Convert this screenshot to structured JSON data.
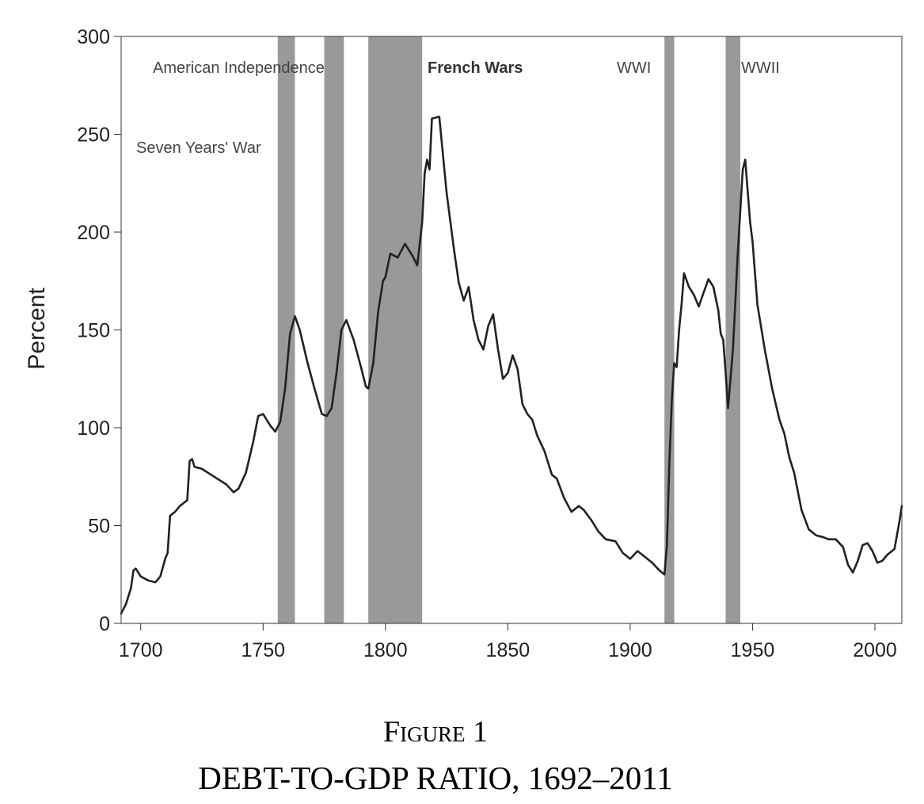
{
  "figure": {
    "label": "Figure 1",
    "title": "DEBT-TO-GDP RATIO, 1692–2011"
  },
  "colors": {
    "line": "#222222",
    "war_band": "#999999",
    "axis": "#333333"
  },
  "chart_data": {
    "type": "line",
    "ylabel": "Percent",
    "xlabel": "",
    "xlim": [
      1692,
      2011
    ],
    "ylim": [
      0,
      300
    ],
    "x_ticks": [
      1700,
      1750,
      1800,
      1850,
      1900,
      1950,
      2000
    ],
    "y_ticks": [
      0,
      50,
      100,
      150,
      200,
      250,
      300
    ],
    "grid": false,
    "wars": [
      {
        "label": "Seven Years' War",
        "start": 1756,
        "end": 1763,
        "bold": false
      },
      {
        "label": "American Independence",
        "start": 1775,
        "end": 1783,
        "bold": false
      },
      {
        "label": "French Wars",
        "start": 1793,
        "end": 1815,
        "bold": true
      },
      {
        "label": "WWI",
        "start": 1914,
        "end": 1918,
        "bold": false
      },
      {
        "label": "WWII",
        "start": 1939,
        "end": 1945,
        "bold": false
      }
    ],
    "series": [
      {
        "values": [
          [
            1692,
            5
          ],
          [
            1694,
            10
          ],
          [
            1696,
            18
          ],
          [
            1697,
            27
          ],
          [
            1698,
            28
          ],
          [
            1700,
            24
          ],
          [
            1703,
            22
          ],
          [
            1706,
            21
          ],
          [
            1708,
            24
          ],
          [
            1710,
            33
          ],
          [
            1711,
            36
          ],
          [
            1712,
            55
          ],
          [
            1714,
            57
          ],
          [
            1716,
            60
          ],
          [
            1719,
            63
          ],
          [
            1720,
            83
          ],
          [
            1721,
            84
          ],
          [
            1722,
            80
          ],
          [
            1725,
            79
          ],
          [
            1730,
            75
          ],
          [
            1735,
            71
          ],
          [
            1738,
            67
          ],
          [
            1740,
            69
          ],
          [
            1743,
            77
          ],
          [
            1746,
            93
          ],
          [
            1748,
            106
          ],
          [
            1750,
            107
          ],
          [
            1753,
            101
          ],
          [
            1755,
            98
          ],
          [
            1757,
            103
          ],
          [
            1759,
            120
          ],
          [
            1761,
            148
          ],
          [
            1763,
            157
          ],
          [
            1765,
            150
          ],
          [
            1768,
            134
          ],
          [
            1771,
            120
          ],
          [
            1774,
            107
          ],
          [
            1776,
            106
          ],
          [
            1778,
            110
          ],
          [
            1780,
            128
          ],
          [
            1782,
            150
          ],
          [
            1784,
            155
          ],
          [
            1787,
            145
          ],
          [
            1790,
            131
          ],
          [
            1792,
            121
          ],
          [
            1793,
            120
          ],
          [
            1795,
            133
          ],
          [
            1797,
            159
          ],
          [
            1799,
            175
          ],
          [
            1800,
            177
          ],
          [
            1802,
            189
          ],
          [
            1805,
            187
          ],
          [
            1808,
            194
          ],
          [
            1811,
            188
          ],
          [
            1813,
            183
          ],
          [
            1815,
            205
          ],
          [
            1816,
            230
          ],
          [
            1817,
            237
          ],
          [
            1818,
            232
          ],
          [
            1819,
            258
          ],
          [
            1822,
            259
          ],
          [
            1825,
            220
          ],
          [
            1828,
            191
          ],
          [
            1830,
            174
          ],
          [
            1832,
            165
          ],
          [
            1834,
            172
          ],
          [
            1836,
            155
          ],
          [
            1838,
            145
          ],
          [
            1840,
            140
          ],
          [
            1842,
            152
          ],
          [
            1844,
            158
          ],
          [
            1846,
            140
          ],
          [
            1848,
            125
          ],
          [
            1850,
            128
          ],
          [
            1852,
            137
          ],
          [
            1854,
            130
          ],
          [
            1856,
            112
          ],
          [
            1858,
            107
          ],
          [
            1860,
            104
          ],
          [
            1862,
            96
          ],
          [
            1865,
            88
          ],
          [
            1868,
            76
          ],
          [
            1870,
            74
          ],
          [
            1873,
            64
          ],
          [
            1876,
            57
          ],
          [
            1879,
            60
          ],
          [
            1881,
            58
          ],
          [
            1884,
            53
          ],
          [
            1887,
            47
          ],
          [
            1890,
            43
          ],
          [
            1894,
            42
          ],
          [
            1897,
            36
          ],
          [
            1900,
            33
          ],
          [
            1903,
            37
          ],
          [
            1906,
            34
          ],
          [
            1909,
            31
          ],
          [
            1912,
            27
          ],
          [
            1914,
            25
          ],
          [
            1915,
            40
          ],
          [
            1916,
            82
          ],
          [
            1917,
            114
          ],
          [
            1918,
            133
          ],
          [
            1919,
            131
          ],
          [
            1920,
            150
          ],
          [
            1921,
            163
          ],
          [
            1922,
            179
          ],
          [
            1924,
            172
          ],
          [
            1926,
            168
          ],
          [
            1928,
            162
          ],
          [
            1930,
            169
          ],
          [
            1932,
            176
          ],
          [
            1934,
            172
          ],
          [
            1936,
            160
          ],
          [
            1937,
            148
          ],
          [
            1938,
            145
          ],
          [
            1939,
            128
          ],
          [
            1940,
            110
          ],
          [
            1942,
            140
          ],
          [
            1944,
            190
          ],
          [
            1946,
            232
          ],
          [
            1947,
            237
          ],
          [
            1949,
            205
          ],
          [
            1950,
            195
          ],
          [
            1952,
            163
          ],
          [
            1955,
            140
          ],
          [
            1958,
            120
          ],
          [
            1961,
            104
          ],
          [
            1963,
            97
          ],
          [
            1965,
            85
          ],
          [
            1967,
            77
          ],
          [
            1970,
            58
          ],
          [
            1973,
            48
          ],
          [
            1976,
            45
          ],
          [
            1979,
            44
          ],
          [
            1981,
            43
          ],
          [
            1984,
            43
          ],
          [
            1987,
            39
          ],
          [
            1989,
            30
          ],
          [
            1991,
            26
          ],
          [
            1993,
            32
          ],
          [
            1995,
            40
          ],
          [
            1997,
            41
          ],
          [
            1999,
            37
          ],
          [
            2001,
            31
          ],
          [
            2003,
            32
          ],
          [
            2005,
            35
          ],
          [
            2008,
            38
          ],
          [
            2010,
            52
          ],
          [
            2011,
            60
          ]
        ]
      }
    ]
  }
}
